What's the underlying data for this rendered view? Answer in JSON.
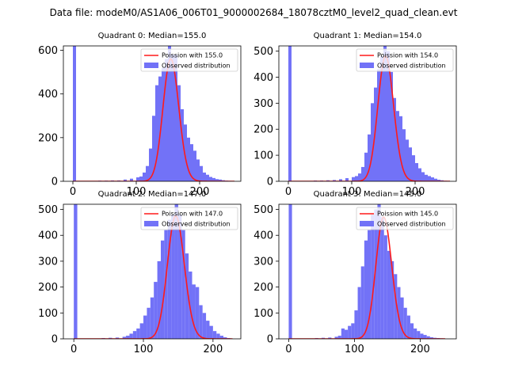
{
  "figure": {
    "suptitle": "Data file: modeM0/AS1A06_006T01_9000002684_18078cztM0_level2_quad_clean.evt"
  },
  "colors": {
    "bar": "#7272f7",
    "line": "#ff1a1a",
    "axes": "#000000",
    "background": "#ffffff"
  },
  "chart_data": [
    {
      "type": "bar",
      "title": "Quadrant 0: Median=155.0",
      "xlim": [
        -15,
        265
      ],
      "ylim": [
        0,
        620
      ],
      "xticks": [
        0,
        100,
        200
      ],
      "yticks": [
        0,
        200,
        400,
        600
      ],
      "legend": {
        "location": "top-right",
        "line_label": "Poission with 155.0",
        "bar_label": "Observed distribution"
      },
      "bin_width": 5,
      "bins_start": [
        0,
        40,
        50,
        60,
        70,
        80,
        90,
        100,
        105,
        110,
        115,
        120,
        125,
        130,
        135,
        140,
        145,
        150,
        155,
        160,
        165,
        170,
        175,
        180,
        185,
        190,
        195,
        200,
        205,
        210,
        215,
        220,
        225,
        230,
        235,
        240,
        245
      ],
      "counts": [
        620,
        3,
        3,
        4,
        4,
        8,
        12,
        18,
        22,
        40,
        70,
        150,
        300,
        440,
        480,
        520,
        560,
        620,
        580,
        580,
        440,
        330,
        260,
        200,
        170,
        140,
        100,
        70,
        40,
        30,
        20,
        15,
        10,
        8,
        5,
        3,
        2
      ],
      "poisson_mean": 155.0,
      "poisson_scale": 560,
      "poisson_x": [
        0,
        255
      ]
    },
    {
      "type": "bar",
      "title": "Quadrant 1: Median=154.0",
      "xlim": [
        -15,
        265
      ],
      "ylim": [
        0,
        520
      ],
      "xticks": [
        0,
        100,
        200
      ],
      "yticks": [
        0,
        100,
        200,
        300,
        400,
        500
      ],
      "legend": {
        "location": "top-right",
        "line_label": "Poission with 154.0",
        "bar_label": "Observed distribution"
      },
      "bin_width": 5,
      "bins_start": [
        0,
        40,
        50,
        60,
        70,
        80,
        90,
        100,
        105,
        110,
        115,
        120,
        125,
        130,
        135,
        140,
        145,
        150,
        155,
        160,
        165,
        170,
        175,
        180,
        185,
        190,
        195,
        200,
        205,
        210,
        215,
        220,
        225,
        230,
        235,
        240,
        245
      ],
      "counts": [
        520,
        3,
        3,
        4,
        5,
        8,
        12,
        16,
        20,
        30,
        55,
        110,
        180,
        300,
        360,
        430,
        480,
        520,
        500,
        420,
        320,
        270,
        250,
        200,
        160,
        130,
        100,
        70,
        50,
        35,
        25,
        20,
        15,
        10,
        6,
        4,
        2
      ],
      "poisson_mean": 154.0,
      "poisson_scale": 480,
      "poisson_x": [
        0,
        255
      ]
    },
    {
      "type": "bar",
      "title": "Quadrant 2: Median=147.0",
      "xlim": [
        -15,
        240
      ],
      "ylim": [
        0,
        520
      ],
      "xticks": [
        0,
        100,
        200
      ],
      "yticks": [
        0,
        100,
        200,
        300,
        400,
        500
      ],
      "legend": {
        "location": "top-right",
        "line_label": "Poission with 147.0",
        "bar_label": "Observed distribution"
      },
      "bin_width": 5,
      "bins_start": [
        0,
        40,
        50,
        60,
        70,
        75,
        80,
        85,
        90,
        95,
        100,
        105,
        110,
        115,
        120,
        125,
        130,
        135,
        140,
        145,
        150,
        155,
        160,
        165,
        170,
        175,
        180,
        185,
        190,
        195,
        200,
        205,
        210,
        215,
        220
      ],
      "counts": [
        520,
        3,
        4,
        5,
        8,
        12,
        20,
        30,
        40,
        60,
        90,
        120,
        160,
        220,
        300,
        380,
        420,
        460,
        480,
        520,
        480,
        420,
        330,
        260,
        210,
        200,
        130,
        100,
        70,
        50,
        30,
        20,
        12,
        6,
        3
      ],
      "poisson_mean": 147.0,
      "poisson_scale": 475,
      "poisson_x": [
        0,
        228
      ]
    },
    {
      "type": "bar",
      "title": "Quadrant 3: Median=145.0",
      "xlim": [
        -15,
        255
      ],
      "ylim": [
        0,
        520
      ],
      "xticks": [
        0,
        100,
        200
      ],
      "yticks": [
        0,
        100,
        200,
        300,
        400,
        500
      ],
      "legend": {
        "location": "top-right",
        "line_label": "Poission with 145.0",
        "bar_label": "Observed distribution"
      },
      "bin_width": 5,
      "bins_start": [
        0,
        40,
        50,
        60,
        70,
        75,
        80,
        85,
        90,
        95,
        100,
        105,
        110,
        115,
        120,
        125,
        130,
        135,
        140,
        145,
        150,
        155,
        160,
        165,
        170,
        175,
        180,
        185,
        190,
        195,
        200,
        205,
        210,
        215,
        220,
        225,
        230
      ],
      "counts": [
        520,
        3,
        4,
        5,
        8,
        12,
        40,
        35,
        50,
        60,
        110,
        200,
        280,
        380,
        420,
        480,
        500,
        520,
        470,
        400,
        340,
        300,
        250,
        200,
        160,
        120,
        90,
        60,
        40,
        30,
        20,
        15,
        10,
        6,
        4,
        3,
        2
      ],
      "poisson_mean": 145.0,
      "poisson_scale": 470,
      "poisson_x": [
        0,
        238
      ]
    }
  ]
}
